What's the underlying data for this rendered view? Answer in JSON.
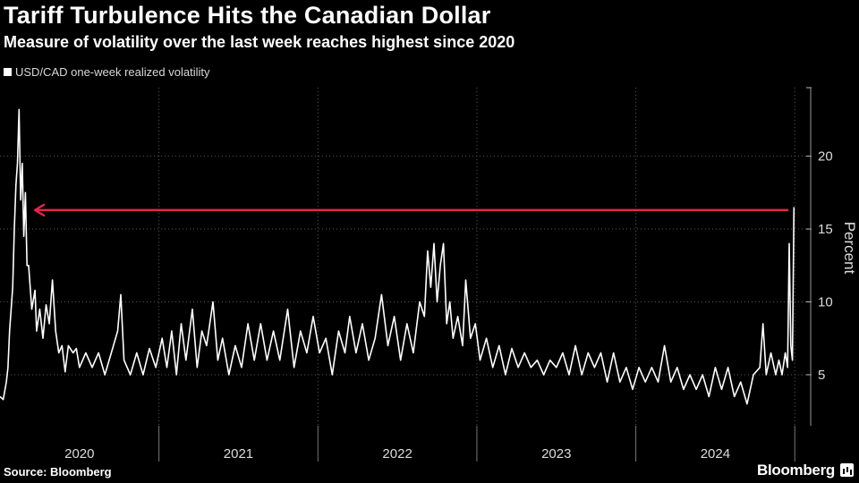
{
  "title": "Tariff Turbulence Hits the Canadian Dollar",
  "subtitle": "Measure of volatility over the last week reaches highest since 2020",
  "legend": "USD/CAD one-week realized volatility",
  "source": "Source: Bloomberg",
  "brand": "Bloomberg",
  "colors": {
    "background": "#000000",
    "line": "#ffffff",
    "arrow": "#e8244a",
    "grid": "#5a5a5a"
  },
  "chart_data": {
    "type": "line",
    "title": "Tariff Turbulence Hits the Canadian Dollar",
    "xlabel": "",
    "ylabel": "Percent",
    "ylim": [
      1.5,
      24.7
    ],
    "xlim": [
      2020.0,
      2025.1
    ],
    "yticks": [
      5,
      10,
      15,
      20
    ],
    "xticks": [
      "2020",
      "2021",
      "2022",
      "2023",
      "2024"
    ],
    "grid": true,
    "annotation": {
      "type": "arrow",
      "from_x": 2024.96,
      "to_x": 2020.22,
      "y": 16.3,
      "color": "#e8244a"
    },
    "series": [
      {
        "name": "USD/CAD one-week realized volatility",
        "points": [
          [
            2020.0,
            3.5
          ],
          [
            2020.02,
            3.3
          ],
          [
            2020.04,
            4.5
          ],
          [
            2020.05,
            5.5
          ],
          [
            2020.06,
            8.0
          ],
          [
            2020.08,
            11.0
          ],
          [
            2020.09,
            15.0
          ],
          [
            2020.1,
            18.0
          ],
          [
            2020.11,
            19.5
          ],
          [
            2020.12,
            23.2
          ],
          [
            2020.13,
            17.0
          ],
          [
            2020.14,
            19.5
          ],
          [
            2020.15,
            14.5
          ],
          [
            2020.16,
            17.5
          ],
          [
            2020.17,
            12.5
          ],
          [
            2020.18,
            12.5
          ],
          [
            2020.2,
            9.5
          ],
          [
            2020.22,
            10.8
          ],
          [
            2020.23,
            8.0
          ],
          [
            2020.25,
            9.5
          ],
          [
            2020.27,
            7.5
          ],
          [
            2020.29,
            9.8
          ],
          [
            2020.31,
            8.5
          ],
          [
            2020.33,
            11.5
          ],
          [
            2020.35,
            8.0
          ],
          [
            2020.37,
            6.5
          ],
          [
            2020.39,
            7.0
          ],
          [
            2020.41,
            5.2
          ],
          [
            2020.43,
            7.0
          ],
          [
            2020.46,
            6.5
          ],
          [
            2020.48,
            6.8
          ],
          [
            2020.5,
            5.5
          ],
          [
            2020.54,
            6.5
          ],
          [
            2020.58,
            5.5
          ],
          [
            2020.62,
            6.5
          ],
          [
            2020.66,
            5.0
          ],
          [
            2020.7,
            6.5
          ],
          [
            2020.74,
            8.0
          ],
          [
            2020.76,
            10.5
          ],
          [
            2020.78,
            6.0
          ],
          [
            2020.82,
            5.0
          ],
          [
            2020.86,
            6.5
          ],
          [
            2020.9,
            5.0
          ],
          [
            2020.94,
            6.8
          ],
          [
            2020.98,
            5.5
          ],
          [
            2021.02,
            7.5
          ],
          [
            2021.05,
            5.5
          ],
          [
            2021.08,
            8.0
          ],
          [
            2021.11,
            5.0
          ],
          [
            2021.14,
            8.5
          ],
          [
            2021.17,
            6.0
          ],
          [
            2021.21,
            9.5
          ],
          [
            2021.24,
            5.5
          ],
          [
            2021.27,
            8.0
          ],
          [
            2021.3,
            7.0
          ],
          [
            2021.34,
            10.0
          ],
          [
            2021.37,
            6.0
          ],
          [
            2021.4,
            7.5
          ],
          [
            2021.44,
            5.0
          ],
          [
            2021.48,
            7.0
          ],
          [
            2021.52,
            5.5
          ],
          [
            2021.56,
            8.5
          ],
          [
            2021.6,
            6.0
          ],
          [
            2021.64,
            8.5
          ],
          [
            2021.68,
            6.0
          ],
          [
            2021.72,
            8.0
          ],
          [
            2021.76,
            6.0
          ],
          [
            2021.81,
            9.5
          ],
          [
            2021.85,
            5.5
          ],
          [
            2021.89,
            8.0
          ],
          [
            2021.93,
            6.5
          ],
          [
            2021.97,
            9.0
          ],
          [
            2022.01,
            6.5
          ],
          [
            2022.05,
            7.5
          ],
          [
            2022.09,
            5.0
          ],
          [
            2022.13,
            8.0
          ],
          [
            2022.17,
            6.5
          ],
          [
            2022.2,
            9.0
          ],
          [
            2022.24,
            6.5
          ],
          [
            2022.28,
            8.5
          ],
          [
            2022.32,
            6.0
          ],
          [
            2022.36,
            7.5
          ],
          [
            2022.4,
            10.5
          ],
          [
            2022.44,
            7.0
          ],
          [
            2022.48,
            9.0
          ],
          [
            2022.52,
            6.0
          ],
          [
            2022.56,
            8.5
          ],
          [
            2022.6,
            6.5
          ],
          [
            2022.64,
            10.0
          ],
          [
            2022.67,
            9.0
          ],
          [
            2022.69,
            13.5
          ],
          [
            2022.71,
            11.0
          ],
          [
            2022.73,
            14.0
          ],
          [
            2022.75,
            10.0
          ],
          [
            2022.77,
            12.5
          ],
          [
            2022.79,
            14.0
          ],
          [
            2022.81,
            8.5
          ],
          [
            2022.83,
            10.0
          ],
          [
            2022.85,
            7.5
          ],
          [
            2022.88,
            9.0
          ],
          [
            2022.91,
            7.0
          ],
          [
            2022.93,
            11.5
          ],
          [
            2022.96,
            7.5
          ],
          [
            2022.99,
            8.5
          ],
          [
            2023.02,
            6.0
          ],
          [
            2023.06,
            7.5
          ],
          [
            2023.1,
            5.5
          ],
          [
            2023.14,
            7.0
          ],
          [
            2023.18,
            5.0
          ],
          [
            2023.22,
            6.8
          ],
          [
            2023.26,
            5.5
          ],
          [
            2023.3,
            6.5
          ],
          [
            2023.34,
            5.5
          ],
          [
            2023.38,
            6.0
          ],
          [
            2023.42,
            5.0
          ],
          [
            2023.46,
            6.0
          ],
          [
            2023.5,
            5.5
          ],
          [
            2023.54,
            6.5
          ],
          [
            2023.58,
            5.0
          ],
          [
            2023.62,
            7.0
          ],
          [
            2023.66,
            5.0
          ],
          [
            2023.7,
            6.5
          ],
          [
            2023.74,
            5.5
          ],
          [
            2023.78,
            6.5
          ],
          [
            2023.82,
            4.5
          ],
          [
            2023.86,
            6.5
          ],
          [
            2023.9,
            4.5
          ],
          [
            2023.94,
            5.5
          ],
          [
            2023.98,
            4.0
          ],
          [
            2024.02,
            5.5
          ],
          [
            2024.06,
            4.5
          ],
          [
            2024.1,
            5.5
          ],
          [
            2024.14,
            4.5
          ],
          [
            2024.18,
            7.0
          ],
          [
            2024.22,
            4.5
          ],
          [
            2024.26,
            5.5
          ],
          [
            2024.3,
            4.0
          ],
          [
            2024.34,
            5.0
          ],
          [
            2024.38,
            4.0
          ],
          [
            2024.42,
            5.0
          ],
          [
            2024.46,
            3.5
          ],
          [
            2024.5,
            5.5
          ],
          [
            2024.54,
            4.0
          ],
          [
            2024.58,
            5.5
          ],
          [
            2024.62,
            3.5
          ],
          [
            2024.66,
            4.5
          ],
          [
            2024.7,
            3.0
          ],
          [
            2024.74,
            5.0
          ],
          [
            2024.78,
            5.5
          ],
          [
            2024.8,
            8.5
          ],
          [
            2024.82,
            5.0
          ],
          [
            2024.85,
            6.5
          ],
          [
            2024.88,
            5.0
          ],
          [
            2024.9,
            6.0
          ],
          [
            2024.92,
            5.0
          ],
          [
            2024.94,
            6.5
          ],
          [
            2024.955,
            5.5
          ],
          [
            2024.965,
            14.0
          ],
          [
            2024.975,
            7.0
          ],
          [
            2024.985,
            6.0
          ],
          [
            2024.995,
            16.5
          ]
        ]
      }
    ]
  }
}
